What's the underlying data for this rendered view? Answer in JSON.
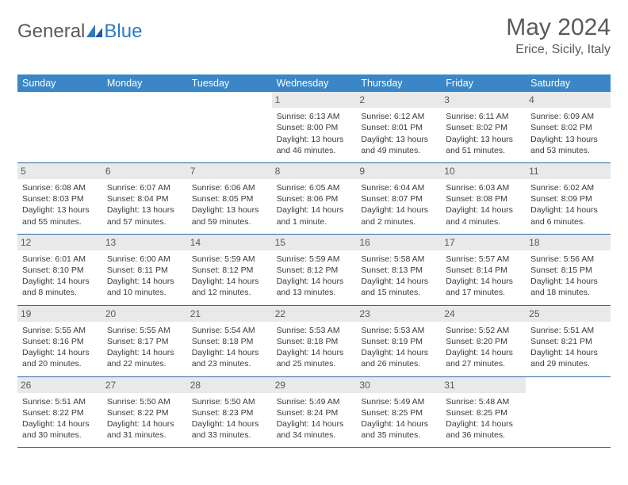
{
  "brand": {
    "part1": "General",
    "part2": "Blue"
  },
  "title": "May 2024",
  "location": "Erice, Sicily, Italy",
  "colors": {
    "header_bg": "#3b86c6",
    "header_text": "#ffffff",
    "daynum_bg": "#e7e9ea",
    "border": "#2f6aa8",
    "text": "#3a3a3a",
    "muted": "#5a5a5a"
  },
  "dayNames": [
    "Sunday",
    "Monday",
    "Tuesday",
    "Wednesday",
    "Thursday",
    "Friday",
    "Saturday"
  ],
  "weeks": [
    [
      {
        "n": "",
        "c": {}
      },
      {
        "n": "",
        "c": {}
      },
      {
        "n": "",
        "c": {}
      },
      {
        "n": "1",
        "c": {
          "sr": "Sunrise: 6:13 AM",
          "ss": "Sunset: 8:00 PM",
          "d1": "Daylight: 13 hours",
          "d2": "and 46 minutes."
        }
      },
      {
        "n": "2",
        "c": {
          "sr": "Sunrise: 6:12 AM",
          "ss": "Sunset: 8:01 PM",
          "d1": "Daylight: 13 hours",
          "d2": "and 49 minutes."
        }
      },
      {
        "n": "3",
        "c": {
          "sr": "Sunrise: 6:11 AM",
          "ss": "Sunset: 8:02 PM",
          "d1": "Daylight: 13 hours",
          "d2": "and 51 minutes."
        }
      },
      {
        "n": "4",
        "c": {
          "sr": "Sunrise: 6:09 AM",
          "ss": "Sunset: 8:02 PM",
          "d1": "Daylight: 13 hours",
          "d2": "and 53 minutes."
        }
      }
    ],
    [
      {
        "n": "5",
        "c": {
          "sr": "Sunrise: 6:08 AM",
          "ss": "Sunset: 8:03 PM",
          "d1": "Daylight: 13 hours",
          "d2": "and 55 minutes."
        }
      },
      {
        "n": "6",
        "c": {
          "sr": "Sunrise: 6:07 AM",
          "ss": "Sunset: 8:04 PM",
          "d1": "Daylight: 13 hours",
          "d2": "and 57 minutes."
        }
      },
      {
        "n": "7",
        "c": {
          "sr": "Sunrise: 6:06 AM",
          "ss": "Sunset: 8:05 PM",
          "d1": "Daylight: 13 hours",
          "d2": "and 59 minutes."
        }
      },
      {
        "n": "8",
        "c": {
          "sr": "Sunrise: 6:05 AM",
          "ss": "Sunset: 8:06 PM",
          "d1": "Daylight: 14 hours",
          "d2": "and 1 minute."
        }
      },
      {
        "n": "9",
        "c": {
          "sr": "Sunrise: 6:04 AM",
          "ss": "Sunset: 8:07 PM",
          "d1": "Daylight: 14 hours",
          "d2": "and 2 minutes."
        }
      },
      {
        "n": "10",
        "c": {
          "sr": "Sunrise: 6:03 AM",
          "ss": "Sunset: 8:08 PM",
          "d1": "Daylight: 14 hours",
          "d2": "and 4 minutes."
        }
      },
      {
        "n": "11",
        "c": {
          "sr": "Sunrise: 6:02 AM",
          "ss": "Sunset: 8:09 PM",
          "d1": "Daylight: 14 hours",
          "d2": "and 6 minutes."
        }
      }
    ],
    [
      {
        "n": "12",
        "c": {
          "sr": "Sunrise: 6:01 AM",
          "ss": "Sunset: 8:10 PM",
          "d1": "Daylight: 14 hours",
          "d2": "and 8 minutes."
        }
      },
      {
        "n": "13",
        "c": {
          "sr": "Sunrise: 6:00 AM",
          "ss": "Sunset: 8:11 PM",
          "d1": "Daylight: 14 hours",
          "d2": "and 10 minutes."
        }
      },
      {
        "n": "14",
        "c": {
          "sr": "Sunrise: 5:59 AM",
          "ss": "Sunset: 8:12 PM",
          "d1": "Daylight: 14 hours",
          "d2": "and 12 minutes."
        }
      },
      {
        "n": "15",
        "c": {
          "sr": "Sunrise: 5:59 AM",
          "ss": "Sunset: 8:12 PM",
          "d1": "Daylight: 14 hours",
          "d2": "and 13 minutes."
        }
      },
      {
        "n": "16",
        "c": {
          "sr": "Sunrise: 5:58 AM",
          "ss": "Sunset: 8:13 PM",
          "d1": "Daylight: 14 hours",
          "d2": "and 15 minutes."
        }
      },
      {
        "n": "17",
        "c": {
          "sr": "Sunrise: 5:57 AM",
          "ss": "Sunset: 8:14 PM",
          "d1": "Daylight: 14 hours",
          "d2": "and 17 minutes."
        }
      },
      {
        "n": "18",
        "c": {
          "sr": "Sunrise: 5:56 AM",
          "ss": "Sunset: 8:15 PM",
          "d1": "Daylight: 14 hours",
          "d2": "and 18 minutes."
        }
      }
    ],
    [
      {
        "n": "19",
        "c": {
          "sr": "Sunrise: 5:55 AM",
          "ss": "Sunset: 8:16 PM",
          "d1": "Daylight: 14 hours",
          "d2": "and 20 minutes."
        }
      },
      {
        "n": "20",
        "c": {
          "sr": "Sunrise: 5:55 AM",
          "ss": "Sunset: 8:17 PM",
          "d1": "Daylight: 14 hours",
          "d2": "and 22 minutes."
        }
      },
      {
        "n": "21",
        "c": {
          "sr": "Sunrise: 5:54 AM",
          "ss": "Sunset: 8:18 PM",
          "d1": "Daylight: 14 hours",
          "d2": "and 23 minutes."
        }
      },
      {
        "n": "22",
        "c": {
          "sr": "Sunrise: 5:53 AM",
          "ss": "Sunset: 8:18 PM",
          "d1": "Daylight: 14 hours",
          "d2": "and 25 minutes."
        }
      },
      {
        "n": "23",
        "c": {
          "sr": "Sunrise: 5:53 AM",
          "ss": "Sunset: 8:19 PM",
          "d1": "Daylight: 14 hours",
          "d2": "and 26 minutes."
        }
      },
      {
        "n": "24",
        "c": {
          "sr": "Sunrise: 5:52 AM",
          "ss": "Sunset: 8:20 PM",
          "d1": "Daylight: 14 hours",
          "d2": "and 27 minutes."
        }
      },
      {
        "n": "25",
        "c": {
          "sr": "Sunrise: 5:51 AM",
          "ss": "Sunset: 8:21 PM",
          "d1": "Daylight: 14 hours",
          "d2": "and 29 minutes."
        }
      }
    ],
    [
      {
        "n": "26",
        "c": {
          "sr": "Sunrise: 5:51 AM",
          "ss": "Sunset: 8:22 PM",
          "d1": "Daylight: 14 hours",
          "d2": "and 30 minutes."
        }
      },
      {
        "n": "27",
        "c": {
          "sr": "Sunrise: 5:50 AM",
          "ss": "Sunset: 8:22 PM",
          "d1": "Daylight: 14 hours",
          "d2": "and 31 minutes."
        }
      },
      {
        "n": "28",
        "c": {
          "sr": "Sunrise: 5:50 AM",
          "ss": "Sunset: 8:23 PM",
          "d1": "Daylight: 14 hours",
          "d2": "and 33 minutes."
        }
      },
      {
        "n": "29",
        "c": {
          "sr": "Sunrise: 5:49 AM",
          "ss": "Sunset: 8:24 PM",
          "d1": "Daylight: 14 hours",
          "d2": "and 34 minutes."
        }
      },
      {
        "n": "30",
        "c": {
          "sr": "Sunrise: 5:49 AM",
          "ss": "Sunset: 8:25 PM",
          "d1": "Daylight: 14 hours",
          "d2": "and 35 minutes."
        }
      },
      {
        "n": "31",
        "c": {
          "sr": "Sunrise: 5:48 AM",
          "ss": "Sunset: 8:25 PM",
          "d1": "Daylight: 14 hours",
          "d2": "and 36 minutes."
        }
      },
      {
        "n": "",
        "c": {}
      }
    ]
  ]
}
